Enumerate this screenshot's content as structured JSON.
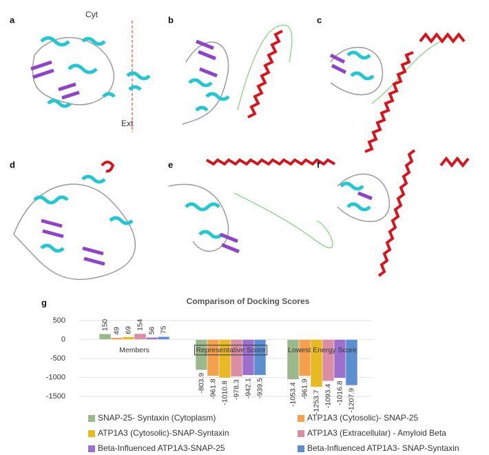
{
  "panels": [
    {
      "label": "a",
      "annotations": [
        "Cyt",
        "Ext"
      ]
    },
    {
      "label": "b"
    },
    {
      "label": "c"
    },
    {
      "label": "d"
    },
    {
      "label": "e"
    },
    {
      "label": "f"
    }
  ],
  "chart_data": {
    "type": "bar",
    "label": "g",
    "title": "Comparison of Docking Scores",
    "categories": [
      "Members",
      "Representative Score",
      "Lowest Energy Score"
    ],
    "series": [
      {
        "name": "SNAP-25- Syntaxin (Cytoplasm)",
        "color": "#9bb98a",
        "values": [
          150,
          -803.9,
          -1053.4
        ]
      },
      {
        "name": "ATP1A3 (Cytosolic)- SNAP-25",
        "color": "#f4a04c",
        "values": [
          49,
          -961.8,
          -961.9
        ]
      },
      {
        "name": "ATP1A3 (Cytosolic)-SNAP-Syntaxin",
        "color": "#e7b923",
        "values": [
          69,
          -1010.8,
          -1253.7
        ]
      },
      {
        "name": "ATP1A3 (Extracellular) - Amyloid Beta",
        "color": "#d98ea3",
        "values": [
          154,
          -978.3,
          -1093.4
        ]
      },
      {
        "name": "Beta-Influenced ATP1A3-SNAP-25",
        "color": "#9c70cc",
        "values": [
          56,
          -942.1,
          -1016.8
        ]
      },
      {
        "name": "Beta-Influenced ATP1A3- SNAP-Syntaxin",
        "color": "#5b8fd0",
        "values": [
          75,
          -939.5,
          -1207.9
        ]
      }
    ],
    "ylim": [
      -1500,
      500
    ],
    "yticks": [
      500,
      0,
      -500,
      -1000,
      -1500
    ],
    "grid": true
  }
}
